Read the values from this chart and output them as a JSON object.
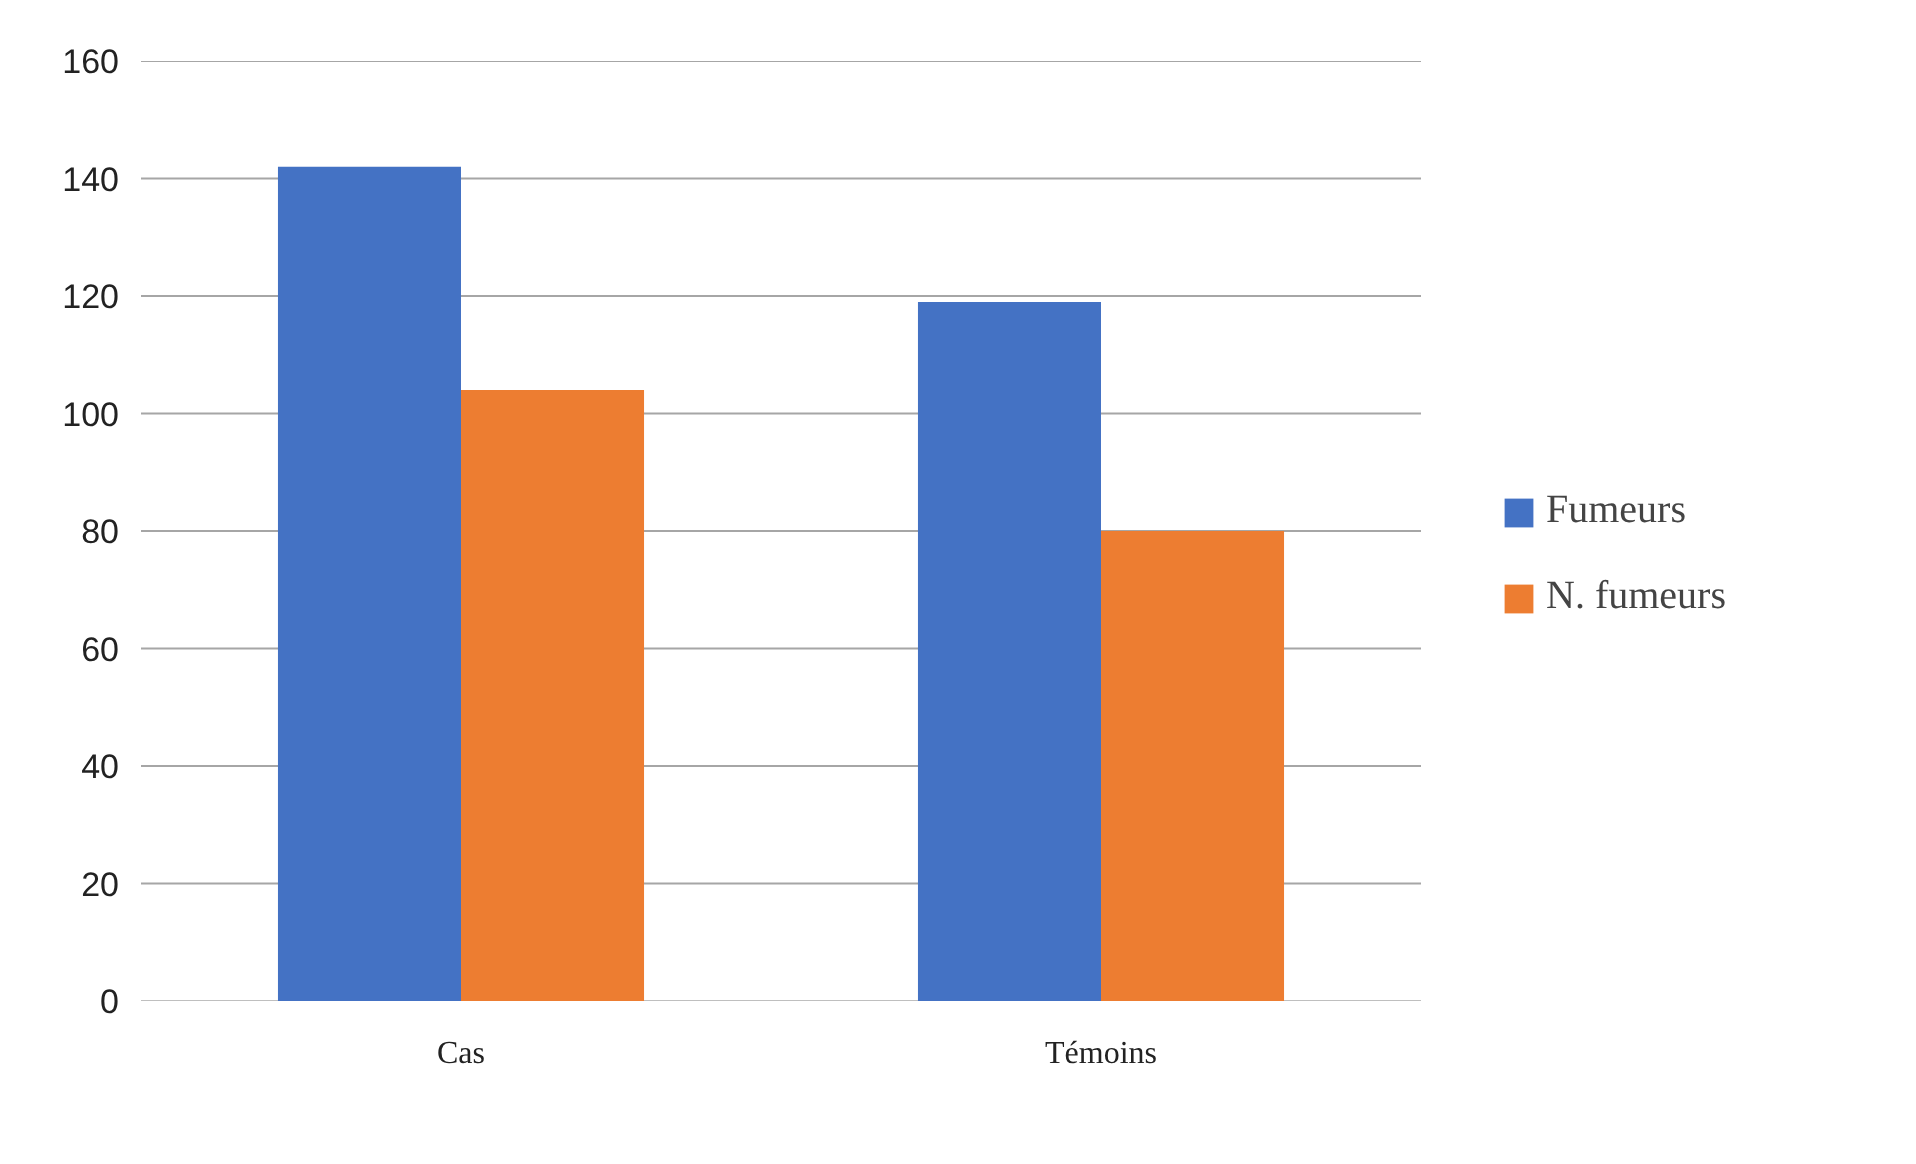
{
  "chart_data": {
    "type": "bar",
    "categories": [
      "Cas",
      "Témoins"
    ],
    "series": [
      {
        "name": "Fumeurs",
        "color": "#4472c4",
        "values": [
          142,
          119
        ]
      },
      {
        "name": "N. fumeurs",
        "color": "#ed7d31",
        "values": [
          104,
          80
        ]
      }
    ],
    "ylim": [
      0,
      160
    ],
    "yticks": [
      0,
      20,
      40,
      60,
      80,
      100,
      120,
      140,
      160
    ],
    "grid": "y",
    "legend": "right"
  }
}
